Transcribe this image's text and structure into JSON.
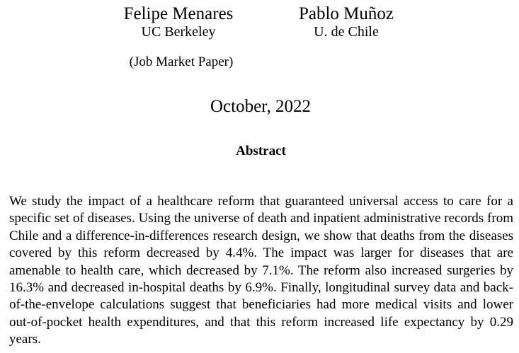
{
  "authors": [
    {
      "name": "Felipe Menares",
      "affiliation": "UC Berkeley"
    },
    {
      "name": "Pablo Muñoz",
      "affiliation": "U. de Chile"
    }
  ],
  "note": "(Job Market Paper)",
  "date": "October, 2022",
  "abstract": {
    "heading": "Abstract",
    "text": "We study the impact of a healthcare reform that guaranteed universal access to care for a specific set of diseases.  Using the universe of death and inpatient administrative records from Chile and a difference-in-differences research design, we show that deaths from the diseases covered by this reform decreased by 4.4%. The impact was larger for diseases that are amenable to health care, which decreased by 7.1%. The reform also increased surgeries by 16.3% and decreased in-hospital deaths by 6.9%. Finally, longitudinal survey data and back-of-the-envelope calculations suggest that beneficiaries had more medical visits and lower out-of-pocket health expenditures, and that this reform increased life expectancy by 0.29 years."
  }
}
